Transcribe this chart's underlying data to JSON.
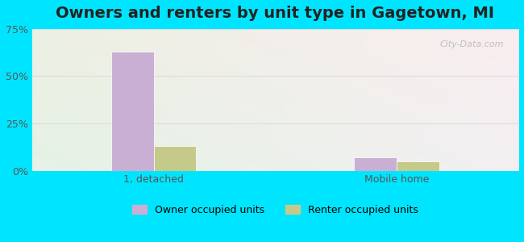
{
  "title": "Owners and renters by unit type in Gagetown, MI",
  "categories": [
    "1, detached",
    "Mobile home"
  ],
  "owner_values": [
    63,
    7
  ],
  "renter_values": [
    13,
    5
  ],
  "owner_color": "#c9afd4",
  "renter_color": "#c5c98a",
  "bar_width": 0.35,
  "ylim": [
    0,
    75
  ],
  "yticks": [
    0,
    25,
    50,
    75
  ],
  "ytick_labels": [
    "0%",
    "25%",
    "50%",
    "75%"
  ],
  "background_outer": "#00e5ff",
  "background_inner_left": "#e8f5e8",
  "background_inner_right": "#e0f5f5",
  "grid_color": "#e8e8e8",
  "title_fontsize": 14,
  "tick_fontsize": 9,
  "legend_fontsize": 9,
  "watermark": "City-Data.com"
}
